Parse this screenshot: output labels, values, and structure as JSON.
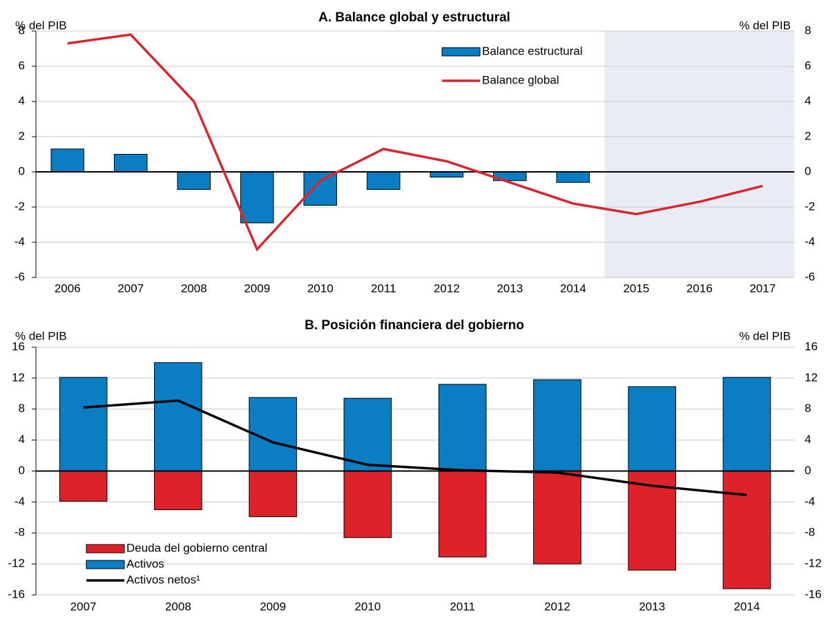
{
  "chart_data": [
    {
      "type": "bar",
      "title": "A. Balance global y estructural",
      "y_label": "% del PIB",
      "y2_label": "% del PIB",
      "categories": [
        "2006",
        "2007",
        "2008",
        "2009",
        "2010",
        "2011",
        "2012",
        "2013",
        "2014",
        "2015",
        "2016",
        "2017"
      ],
      "series": [
        {
          "name": "Balance estructural",
          "type": "bar",
          "color": "#0b7dc2",
          "values": [
            1.3,
            1.0,
            -1.0,
            -2.9,
            -1.9,
            -1.0,
            -0.3,
            -0.5,
            -0.6,
            null,
            null,
            null
          ]
        },
        {
          "name": "Balance global",
          "type": "line",
          "color": "#d9262e",
          "values": [
            7.3,
            7.8,
            4.0,
            -4.4,
            -0.5,
            1.3,
            0.6,
            -0.6,
            -1.8,
            -2.4,
            -1.7,
            -0.8
          ]
        }
      ],
      "ylim": [
        -6,
        8
      ],
      "yticks": [
        -6,
        -4,
        -2,
        0,
        2,
        4,
        6,
        8
      ],
      "y2lim": [
        -6,
        8
      ],
      "y2ticks": [
        -6,
        -4,
        -2,
        0,
        2,
        4,
        6,
        8
      ],
      "grid": true,
      "legend": "upper center",
      "shaded_from": "2015"
    },
    {
      "type": "bar",
      "title": "B. Posición financiera del gobierno",
      "y_label": "% del PIB",
      "y2_label": "% del PIB",
      "categories": [
        "2007",
        "2008",
        "2009",
        "2010",
        "2011",
        "2012",
        "2013",
        "2014"
      ],
      "series": [
        {
          "name": "Deuda del gobierno central",
          "type": "bar",
          "color": "#dd2229",
          "values": [
            -3.9,
            -5.0,
            -5.9,
            -8.6,
            -11.1,
            -12.0,
            -12.8,
            -15.2
          ]
        },
        {
          "name": "Activos",
          "type": "bar",
          "color": "#0b7dc2",
          "values": [
            12.1,
            14.0,
            9.5,
            9.4,
            11.2,
            11.8,
            10.9,
            12.1
          ]
        },
        {
          "name": "Activos netos¹",
          "type": "line",
          "color": "#000000",
          "values": [
            8.2,
            9.1,
            3.7,
            0.8,
            0.1,
            -0.2,
            -1.9,
            -3.1
          ]
        }
      ],
      "ylim": [
        -16,
        16
      ],
      "yticks": [
        -16,
        -12,
        -8,
        -4,
        0,
        4,
        8,
        12,
        16
      ],
      "y2lim": [
        -16,
        16
      ],
      "y2ticks": [
        -16,
        -12,
        -8,
        -4,
        0,
        4,
        8,
        12,
        16
      ],
      "grid": true,
      "legend": "lower left"
    }
  ]
}
